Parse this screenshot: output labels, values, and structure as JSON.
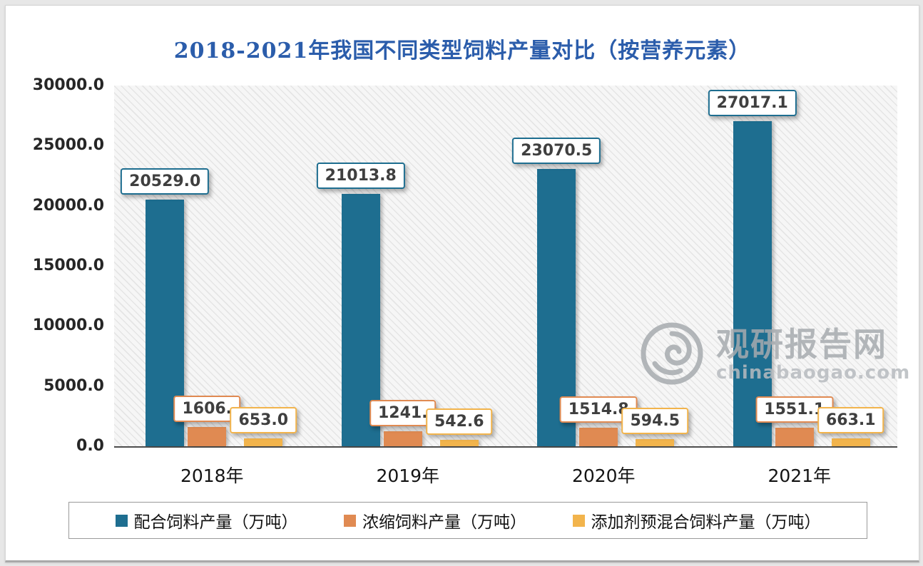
{
  "title": "2018-2021年我国不同类型饲料产量对比（按营养元素）",
  "watermark": {
    "name": "观研报告网",
    "domain": "chinabaogao.com"
  },
  "chart_data": {
    "type": "bar",
    "title": "2018-2021年我国不同类型饲料产量对比（按营养元素）",
    "categories": [
      "2018年",
      "2019年",
      "2020年",
      "2021年"
    ],
    "series": [
      {
        "name": "配合饲料产量（万吨）",
        "color": "#1e6e90",
        "values": [
          20529.0,
          21013.8,
          23070.5,
          27017.1
        ],
        "labels": [
          "20529.0",
          "21013.8",
          "23070.5",
          "27017.1"
        ]
      },
      {
        "name": "浓缩饲料产量（万吨）",
        "color": "#e08a52",
        "values": [
          1606.0,
          1241.0,
          1514.8,
          1551.1
        ],
        "labels": [
          "1606.",
          "1241.",
          "1514.8",
          "1551.1"
        ]
      },
      {
        "name": "添加剂预混合饲料产量（万吨）",
        "color": "#f2b44c",
        "values": [
          653.0,
          542.6,
          594.5,
          663.1
        ],
        "labels": [
          "653.0",
          "542.6",
          "594.5",
          "663.1"
        ]
      }
    ],
    "ylim": [
      0,
      30000
    ],
    "yticks": [
      "30000.0",
      "25000.0",
      "20000.0",
      "15000.0",
      "10000.0",
      "5000.0",
      "0.0"
    ],
    "xlabel": "",
    "ylabel": "",
    "grid": false,
    "legend_position": "bottom"
  }
}
